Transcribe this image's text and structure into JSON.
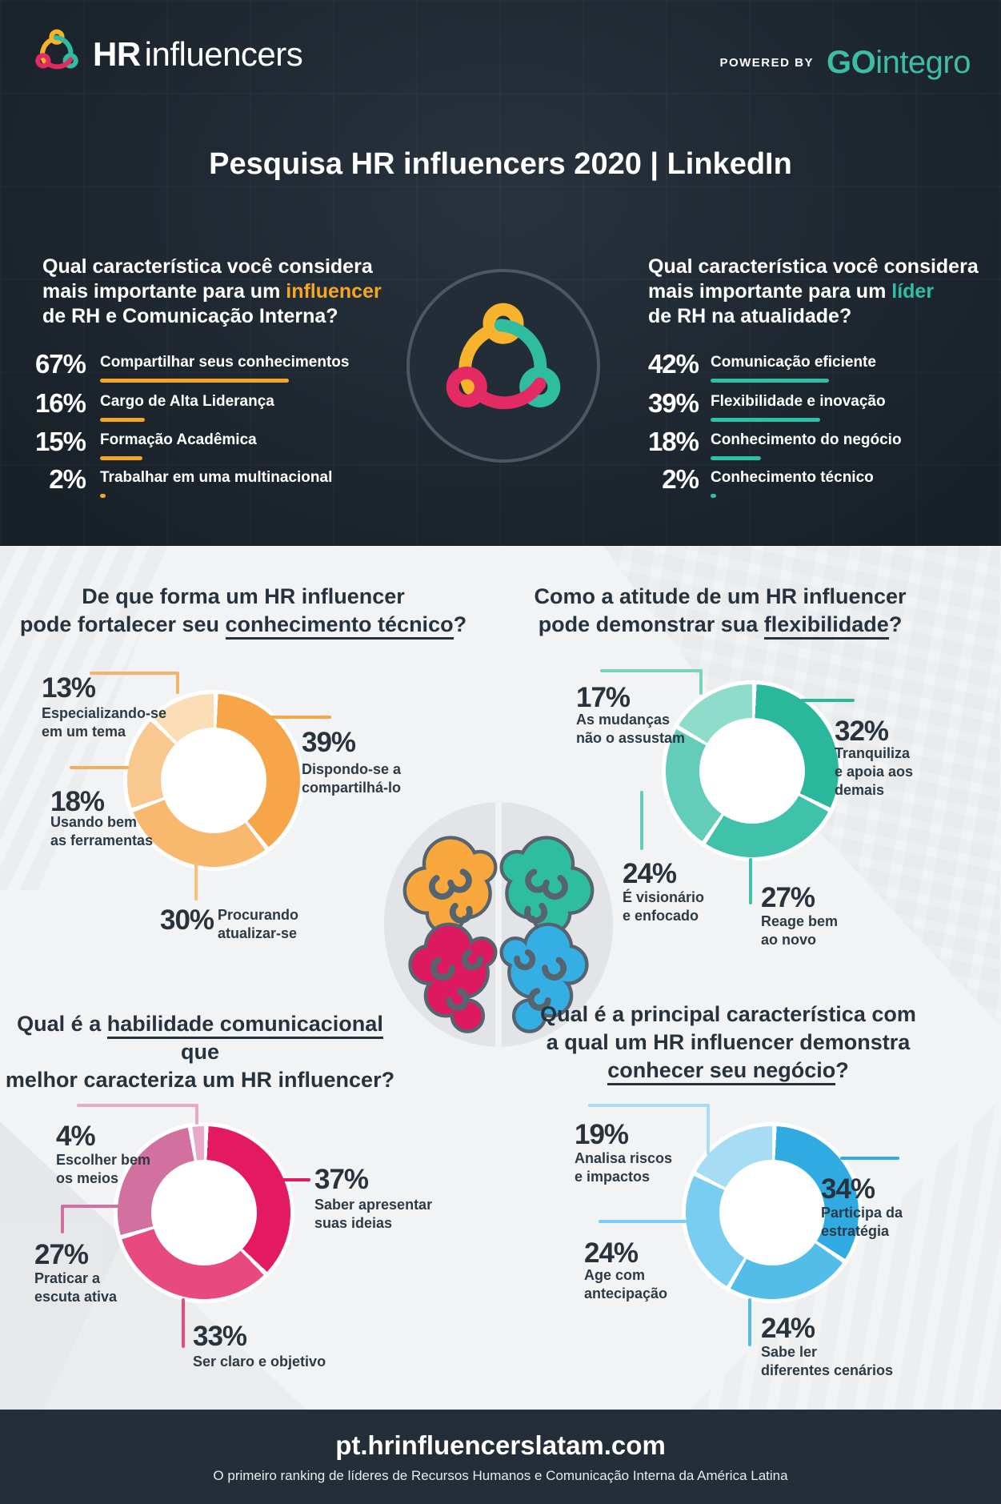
{
  "header": {
    "brand_hr": "HR",
    "brand_rest": "influencers",
    "powered_by": "POWERED BY",
    "partner_go": "GO",
    "partner_rest": "integro",
    "partner_color": "#3DBEA3",
    "title": "Pesquisa HR influencers 2020 | LinkedIn"
  },
  "footer": {
    "url": "pt.hrinfluencerslatam.com",
    "tagline": "O primeiro ranking de líderes de Recursos Humanos e Comunicação Interna da América Latina"
  },
  "chart_data": [
    {
      "id": "influencer_traits",
      "type": "bar",
      "unit": "%",
      "accent": "#F5A623",
      "title": "Qual característica você considera mais importante para um influencer de RH e Comunicação Interna?",
      "q_line1": "Qual característica você considera",
      "q_line2_pre": "mais importante para um ",
      "q_line2_hl": "influencer",
      "q_line3": "de RH e Comunicação Interna?",
      "categories": [
        "Compartilhar seus conhecimentos",
        "Cargo de Alta Liderança",
        "Formação Acadêmica",
        "Trabalhar em uma multinacional"
      ],
      "values": [
        67,
        16,
        15,
        2
      ],
      "pct_labels": [
        "67%",
        "16%",
        "15%",
        "2%"
      ]
    },
    {
      "id": "leader_traits",
      "type": "bar",
      "unit": "%",
      "accent": "#2EBFA4",
      "title": "Qual característica você considera mais importante para um líder de RH na atualidade?",
      "q_line1": "Qual característica você considera",
      "q_line2_pre": "mais importante para um ",
      "q_line2_hl": "líder",
      "q_line3": "de RH na atualidade?",
      "categories": [
        "Comunicação eficiente",
        "Flexibilidade e inovação",
        "Conhecimento do negócio",
        "Conhecimento técnico"
      ],
      "values": [
        42,
        39,
        18,
        2
      ],
      "pct_labels": [
        "42%",
        "39%",
        "18%",
        "2%"
      ]
    },
    {
      "id": "conhecimento_tecnico",
      "type": "donut",
      "unit": "%",
      "title": "De que forma um HR influencer pode fortalecer seu conhecimento técnico?",
      "q_line1": "De que forma um HR influencer",
      "q_line2_pre": "pode fortalecer seu ",
      "q_line2_u": "conhecimento técnico",
      "q_line2_post": "?",
      "segments": [
        {
          "pct": "39%",
          "value": 39,
          "color": "#F6A649",
          "line": "#F5A64A",
          "l1": "Dispondo-se a",
          "l2": "compartilhá-lo"
        },
        {
          "pct": "30%",
          "value": 30,
          "color": "#F8B96E",
          "line": "#F8BE7A",
          "l1": "Procurando",
          "l2": "atualizar-se"
        },
        {
          "pct": "18%",
          "value": 18,
          "color": "#F9C88F",
          "line": "#F5AC5C",
          "l1": "Usando bem",
          "l2": "as ferramentas"
        },
        {
          "pct": "13%",
          "value": 13,
          "color": "#FBDDB6",
          "line": "#F3B469",
          "l1": "Especializando-se",
          "l2": "em um tema"
        }
      ]
    },
    {
      "id": "flexibilidade",
      "type": "donut",
      "unit": "%",
      "title": "Como a atitude de um HR influencer pode demonstrar sua flexibilidade?",
      "q_line1": "Como a atitude de um HR influencer",
      "q_line2_pre": "pode demonstrar sua ",
      "q_line2_u": "flexibilidade",
      "q_line2_post": "?",
      "segments": [
        {
          "pct": "32%",
          "value": 32,
          "color": "#29B89C",
          "line": "#29B89C",
          "l1": "Tranquiliza",
          "l2": "e apoia aos",
          "l3": "demais"
        },
        {
          "pct": "27%",
          "value": 27,
          "color": "#40C2AA",
          "line": "#40C2AA",
          "l1": "Reage bem",
          "l2": "ao novo"
        },
        {
          "pct": "24%",
          "value": 24,
          "color": "#63CDB9",
          "line": "#63CDB9",
          "l1": "É visionário",
          "l2": "e enfocado"
        },
        {
          "pct": "17%",
          "value": 17,
          "color": "#90DCCB",
          "line": "#7AD2BF",
          "l1": "As mudanças",
          "l2": "não o assustam"
        }
      ]
    },
    {
      "id": "habilidade_comunicacional",
      "type": "donut",
      "unit": "%",
      "title": "Qual é a habilidade comunicacional que melhor caracteriza um HR influencer?",
      "q_line1_pre": "Qual é a ",
      "q_line1_u": "habilidade comunicacional",
      "q_line1_post": " que",
      "q_line2": "melhor caracteriza um HR influencer?",
      "segments": [
        {
          "pct": "37%",
          "value": 37,
          "color": "#E31A61",
          "line": "#E31A61",
          "l1": "Saber apresentar",
          "l2": "suas ideias"
        },
        {
          "pct": "33%",
          "value": 33,
          "color": "#E84A80",
          "line": "#E84A80",
          "l1": "Ser claro e objetivo"
        },
        {
          "pct": "27%",
          "value": 27,
          "color": "#D2709F",
          "line": "#D2709F",
          "l1": "Praticar a",
          "l2": "escuta ativa"
        },
        {
          "pct": "4%",
          "value": 4,
          "color": "#E7A9C6",
          "line": "#E7A9C6",
          "l1": "Escolher bem",
          "l2": "os meios"
        }
      ]
    },
    {
      "id": "conhecer_seu_negocio",
      "type": "donut",
      "unit": "%",
      "title": "Qual é a principal característica com a qual um HR influencer demonstra conhecer seu negócio?",
      "q_line1": "Qual é a principal característica com",
      "q_line2": "a qual um HR influencer demonstra",
      "q_line3_u": "conhecer seu negócio",
      "q_line3_post": "?",
      "segments": [
        {
          "pct": "34%",
          "value": 34,
          "color": "#2FABE1",
          "line": "#2FABE1",
          "l1": "Participa da",
          "l2": "estratégia"
        },
        {
          "pct": "24%",
          "value": 24,
          "color": "#52BDE9",
          "line": "#52BDE9",
          "l1": "Sabe ler",
          "l2": "diferentes cenários"
        },
        {
          "pct": "24%",
          "value": 24,
          "color": "#79CDF0",
          "line": "#79CDF0",
          "l1": "Age com",
          "l2": "antecipação"
        },
        {
          "pct": "19%",
          "value": 19,
          "color": "#A6DDF4",
          "line": "#A6DDF4",
          "l1": "Analisa riscos",
          "l2": "e impactos"
        }
      ]
    }
  ]
}
